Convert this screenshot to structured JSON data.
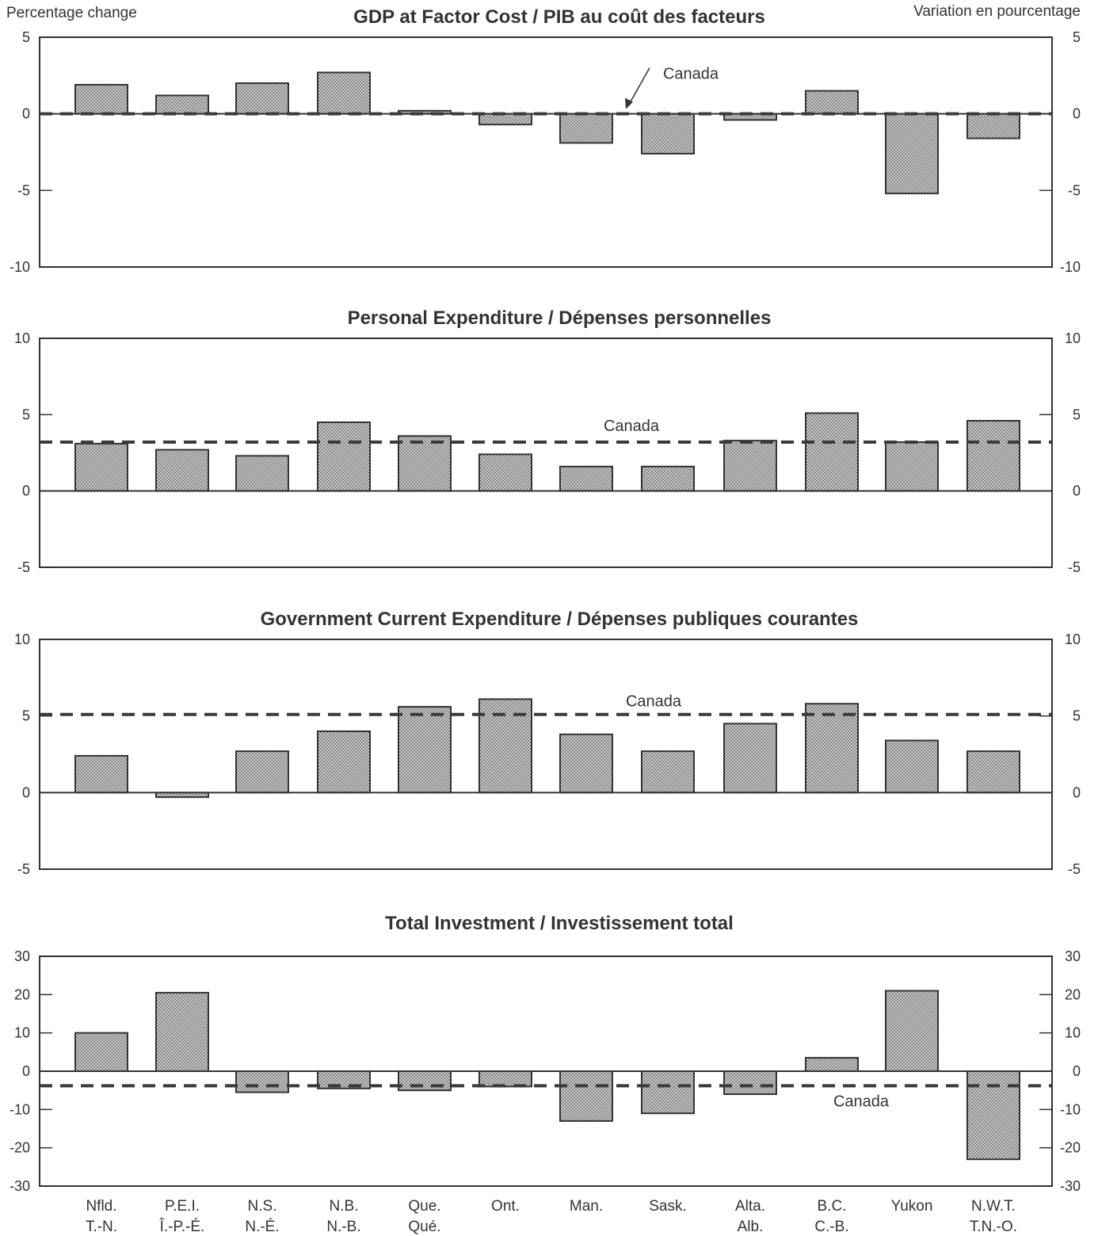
{
  "header": {
    "left_label": "Percentage change",
    "right_label": "Variation en pourcentage"
  },
  "categories": [
    [
      "Nfld.",
      "T.-N."
    ],
    [
      "P.E.I.",
      "Î.-P.-É."
    ],
    [
      "N.S.",
      "N.-É."
    ],
    [
      "N.B.",
      "N.-B."
    ],
    [
      "Que.",
      "Qué."
    ],
    [
      "Ont.",
      ""
    ],
    [
      "Man.",
      ""
    ],
    [
      "Sask.",
      ""
    ],
    [
      "Alta.",
      "Alb."
    ],
    [
      "B.C.",
      "C.-B."
    ],
    [
      "Yukon",
      ""
    ],
    [
      "N.W.T.",
      "T.N.-O."
    ]
  ],
  "colors": {
    "ink": "#333333",
    "bar_fill": "#bdbdbd"
  },
  "chart_data": [
    {
      "type": "bar",
      "title": "GDP at Factor Cost / PIB au coût des facteurs",
      "ylim": [
        -10,
        5
      ],
      "ticks": [
        5,
        0,
        -5,
        -10
      ],
      "values": [
        1.9,
        1.2,
        2.0,
        2.7,
        0.2,
        -0.7,
        -1.9,
        -2.6,
        -0.4,
        1.5,
        -5.2,
        -1.6
      ],
      "reference": {
        "label": "Canada",
        "value": 0.0
      }
    },
    {
      "type": "bar",
      "title": "Personal Expenditure / Dépenses personnelles",
      "ylim": [
        -5,
        10
      ],
      "ticks": [
        10,
        5,
        0,
        -5
      ],
      "values": [
        3.1,
        2.7,
        2.3,
        4.5,
        3.6,
        2.4,
        1.6,
        1.6,
        3.3,
        5.1,
        3.2,
        4.6
      ],
      "reference": {
        "label": "Canada",
        "value": 3.2
      }
    },
    {
      "type": "bar",
      "title": "Government Current Expenditure / Dépenses publiques courantes",
      "ylim": [
        -5,
        10
      ],
      "ticks": [
        10,
        5,
        0,
        -5
      ],
      "values": [
        2.4,
        -0.3,
        2.7,
        4.0,
        5.6,
        6.1,
        3.8,
        2.7,
        4.5,
        5.8,
        3.4,
        2.7
      ],
      "reference": {
        "label": "Canada",
        "value": 5.1
      }
    },
    {
      "type": "bar",
      "title": "Total Investment / Investissement total",
      "ylim": [
        -30,
        30
      ],
      "ticks": [
        30,
        20,
        10,
        0,
        -10,
        -20,
        -30
      ],
      "values": [
        10.0,
        20.5,
        -5.5,
        -4.5,
        -5.0,
        -4.0,
        -13.0,
        -11.0,
        -6.0,
        3.5,
        21.0,
        -23.0
      ],
      "reference": {
        "label": "Canada",
        "value": -3.8
      }
    }
  ]
}
